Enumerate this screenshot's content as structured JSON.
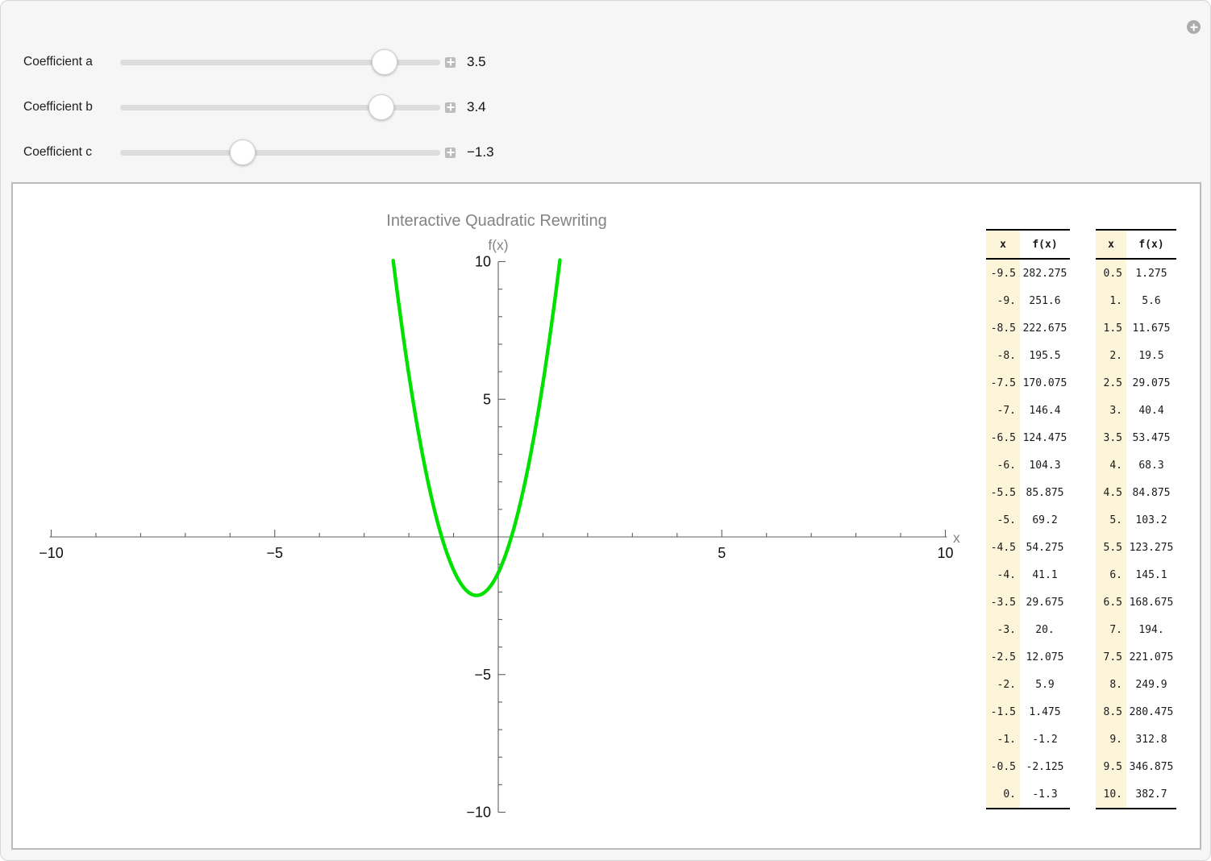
{
  "controls": [
    {
      "label": "Coefficient a",
      "value": 3.5,
      "value_label": "3.5",
      "min": -5,
      "max": 5
    },
    {
      "label": "Coefficient b",
      "value": 3.4,
      "value_label": "3.4",
      "min": -5,
      "max": 5
    },
    {
      "label": "Coefficient c",
      "value": -1.3,
      "value_label": "−1.3",
      "min": -5,
      "max": 5
    }
  ],
  "chart_data": {
    "type": "line",
    "title": "Interactive Quadratic Rewriting",
    "xlabel": "x",
    "ylabel": "f(x)",
    "function": "f(x) = a*x^2 + b*x + c",
    "coefficients": {
      "a": 3.5,
      "b": 3.4,
      "c": -1.3
    },
    "xlim": [
      -10,
      10
    ],
    "ylim": [
      -10,
      10
    ],
    "x_major_ticks": [
      -10,
      -5,
      5,
      10
    ],
    "x_tick_labels": [
      "−10",
      "−5",
      "5",
      "10"
    ],
    "y_major_ticks": [
      10,
      5,
      -5,
      -10
    ],
    "y_tick_labels": [
      "10",
      "5",
      "−5",
      "−10"
    ],
    "minor_tick_step": 1,
    "grid": false,
    "legend": false,
    "curve_color": "#00e100",
    "title_color": "#848484",
    "vertex": {
      "x": -0.486,
      "y": -2.126
    }
  },
  "tables": [
    {
      "headers": [
        "x",
        "f(x)"
      ],
      "rows": [
        [
          "-9.5",
          "282.275"
        ],
        [
          "-9.",
          "251.6"
        ],
        [
          "-8.5",
          "222.675"
        ],
        [
          "-8.",
          "195.5"
        ],
        [
          "-7.5",
          "170.075"
        ],
        [
          "-7.",
          "146.4"
        ],
        [
          "-6.5",
          "124.475"
        ],
        [
          "-6.",
          "104.3"
        ],
        [
          "-5.5",
          "85.875"
        ],
        [
          "-5.",
          "69.2"
        ],
        [
          "-4.5",
          "54.275"
        ],
        [
          "-4.",
          "41.1"
        ],
        [
          "-3.5",
          "29.675"
        ],
        [
          "-3.",
          "20."
        ],
        [
          "-2.5",
          "12.075"
        ],
        [
          "-2.",
          "5.9"
        ],
        [
          "-1.5",
          "1.475"
        ],
        [
          "-1.",
          "-1.2"
        ],
        [
          "-0.5",
          "-2.125"
        ],
        [
          "0.",
          "-1.3"
        ]
      ]
    },
    {
      "headers": [
        "x",
        "f(x)"
      ],
      "rows": [
        [
          "0.5",
          "1.275"
        ],
        [
          "1.",
          "5.6"
        ],
        [
          "1.5",
          "11.675"
        ],
        [
          "2.",
          "19.5"
        ],
        [
          "2.5",
          "29.075"
        ],
        [
          "3.",
          "40.4"
        ],
        [
          "3.5",
          "53.475"
        ],
        [
          "4.",
          "68.3"
        ],
        [
          "4.5",
          "84.875"
        ],
        [
          "5.",
          "103.2"
        ],
        [
          "5.5",
          "123.275"
        ],
        [
          "6.",
          "145.1"
        ],
        [
          "6.5",
          "168.675"
        ],
        [
          "7.",
          "194."
        ],
        [
          "7.5",
          "221.075"
        ],
        [
          "8.",
          "249.9"
        ],
        [
          "8.5",
          "280.475"
        ],
        [
          "9.",
          "312.8"
        ],
        [
          "9.5",
          "346.875"
        ],
        [
          "10.",
          "382.7"
        ]
      ]
    }
  ]
}
